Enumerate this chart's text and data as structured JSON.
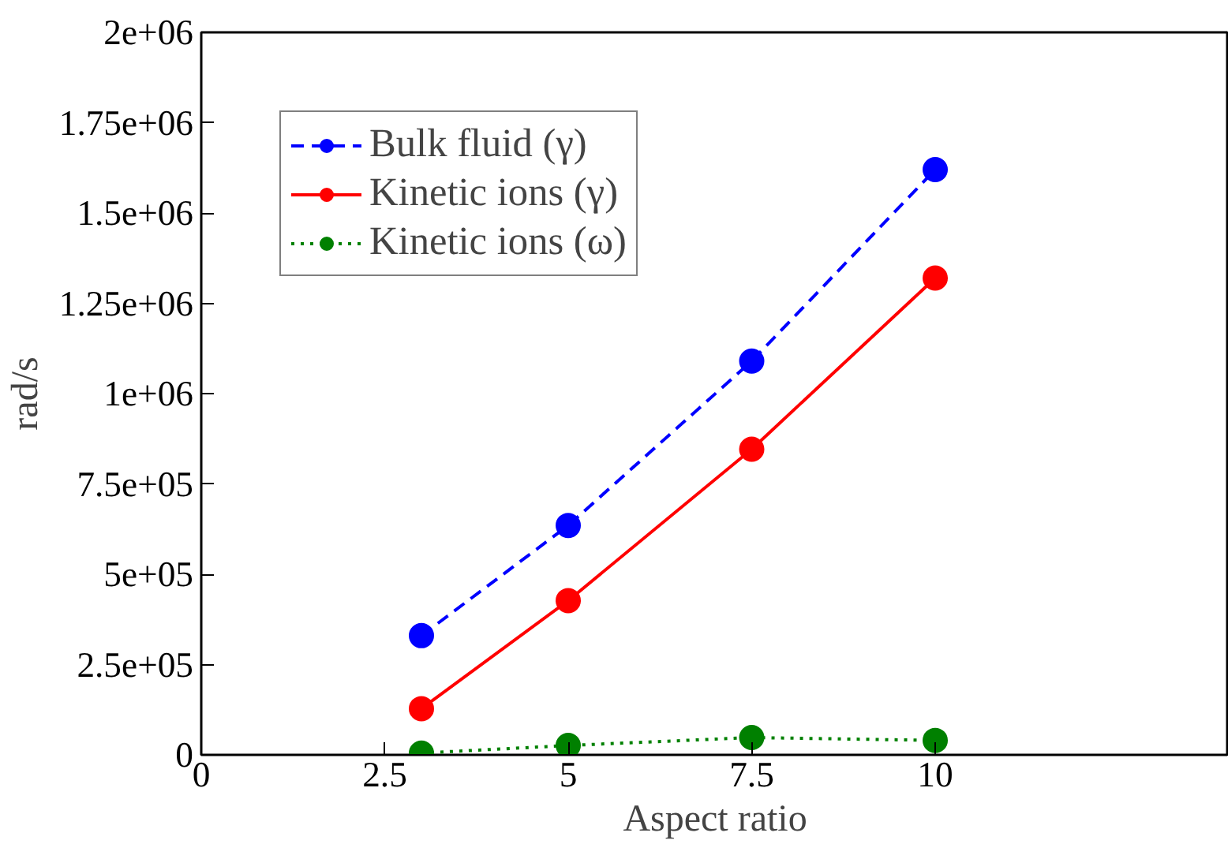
{
  "chart_data": {
    "type": "line",
    "xlabel": "Aspect ratio",
    "ylabel": "rad/s",
    "x": [
      3,
      5,
      7.5,
      10
    ],
    "series": [
      {
        "name": "Bulk fluid (γ)",
        "color": "#0000ff",
        "line_style": "dashed",
        "values": [
          330000,
          635000,
          1090000,
          1620000
        ]
      },
      {
        "name": "Kinetic ions (γ)",
        "color": "#ff0000",
        "line_style": "solid",
        "values": [
          128000,
          427000,
          846000,
          1320000
        ]
      },
      {
        "name": "Kinetic ions (ω)",
        "color": "#008000",
        "line_style": "dotted",
        "values": [
          5000,
          26000,
          48000,
          40000
        ]
      }
    ],
    "xlim": [
      0,
      14
    ],
    "xticks": [
      0,
      2.5,
      5,
      7.5,
      10
    ],
    "ylim": [
      0,
      2000000
    ],
    "yticks": [
      {
        "value": 0,
        "label": "0"
      },
      {
        "value": 250000,
        "label": "2.5e+05"
      },
      {
        "value": 500000,
        "label": "5e+05"
      },
      {
        "value": 750000,
        "label": "7.5e+05"
      },
      {
        "value": 1000000,
        "label": "1e+06"
      },
      {
        "value": 1250000,
        "label": "1.25e+06"
      },
      {
        "value": 1500000,
        "label": "1.5e+06"
      },
      {
        "value": 1750000,
        "label": "1.75e+06"
      },
      {
        "value": 2000000,
        "label": "2e+06"
      }
    ],
    "marker": "circle",
    "grid": false,
    "legend": "top left"
  }
}
